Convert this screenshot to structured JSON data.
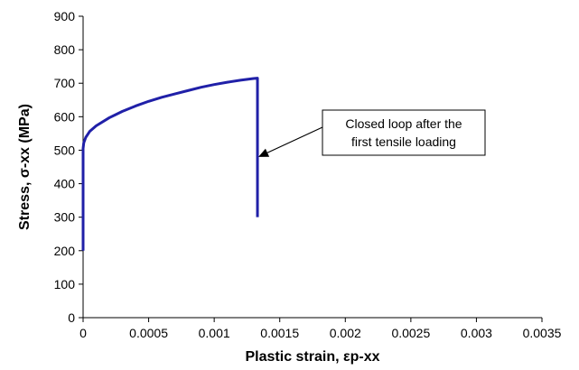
{
  "chart_data": {
    "type": "line",
    "title": "",
    "xlabel": "Plastic strain, εp-xx",
    "ylabel": "Stress, σ-xx (MPa)",
    "xlim": [
      0,
      0.0035
    ],
    "ylim": [
      0,
      900
    ],
    "xticks": [
      0,
      0.0005,
      0.001,
      0.0015,
      0.002,
      0.0025,
      0.003,
      0.0035
    ],
    "xtick_labels": [
      "0",
      "0.0005",
      "0.001",
      "0.0015",
      "0.002",
      "0.0025",
      "0.003",
      "0.0035"
    ],
    "yticks": [
      0,
      100,
      200,
      300,
      400,
      500,
      600,
      700,
      800,
      900
    ],
    "ytick_labels": [
      "0",
      "100",
      "200",
      "300",
      "400",
      "500",
      "600",
      "700",
      "800",
      "900"
    ],
    "grid": false,
    "legend": "none",
    "series": [
      {
        "color": "#2020a8",
        "x": [
          0,
          0,
          5e-06,
          2e-05,
          5e-05,
          0.0001,
          0.0002,
          0.0003,
          0.0004,
          0.0005,
          0.0006,
          0.0007,
          0.0008,
          0.0009,
          0.001,
          0.0011,
          0.0012,
          0.0013,
          0.00133,
          0.00133,
          0.00133
        ],
        "y": [
          200,
          505,
          522,
          538,
          556,
          573,
          597,
          616,
          632,
          646,
          658,
          668,
          678,
          688,
          696,
          703,
          709,
          714,
          715,
          480,
          300
        ]
      }
    ],
    "annotations": [
      {
        "lines": [
          "Closed loop after the",
          "first tensile loading"
        ],
        "arrow_to": {
          "x": 0.00133,
          "y": 480
        }
      }
    ]
  }
}
